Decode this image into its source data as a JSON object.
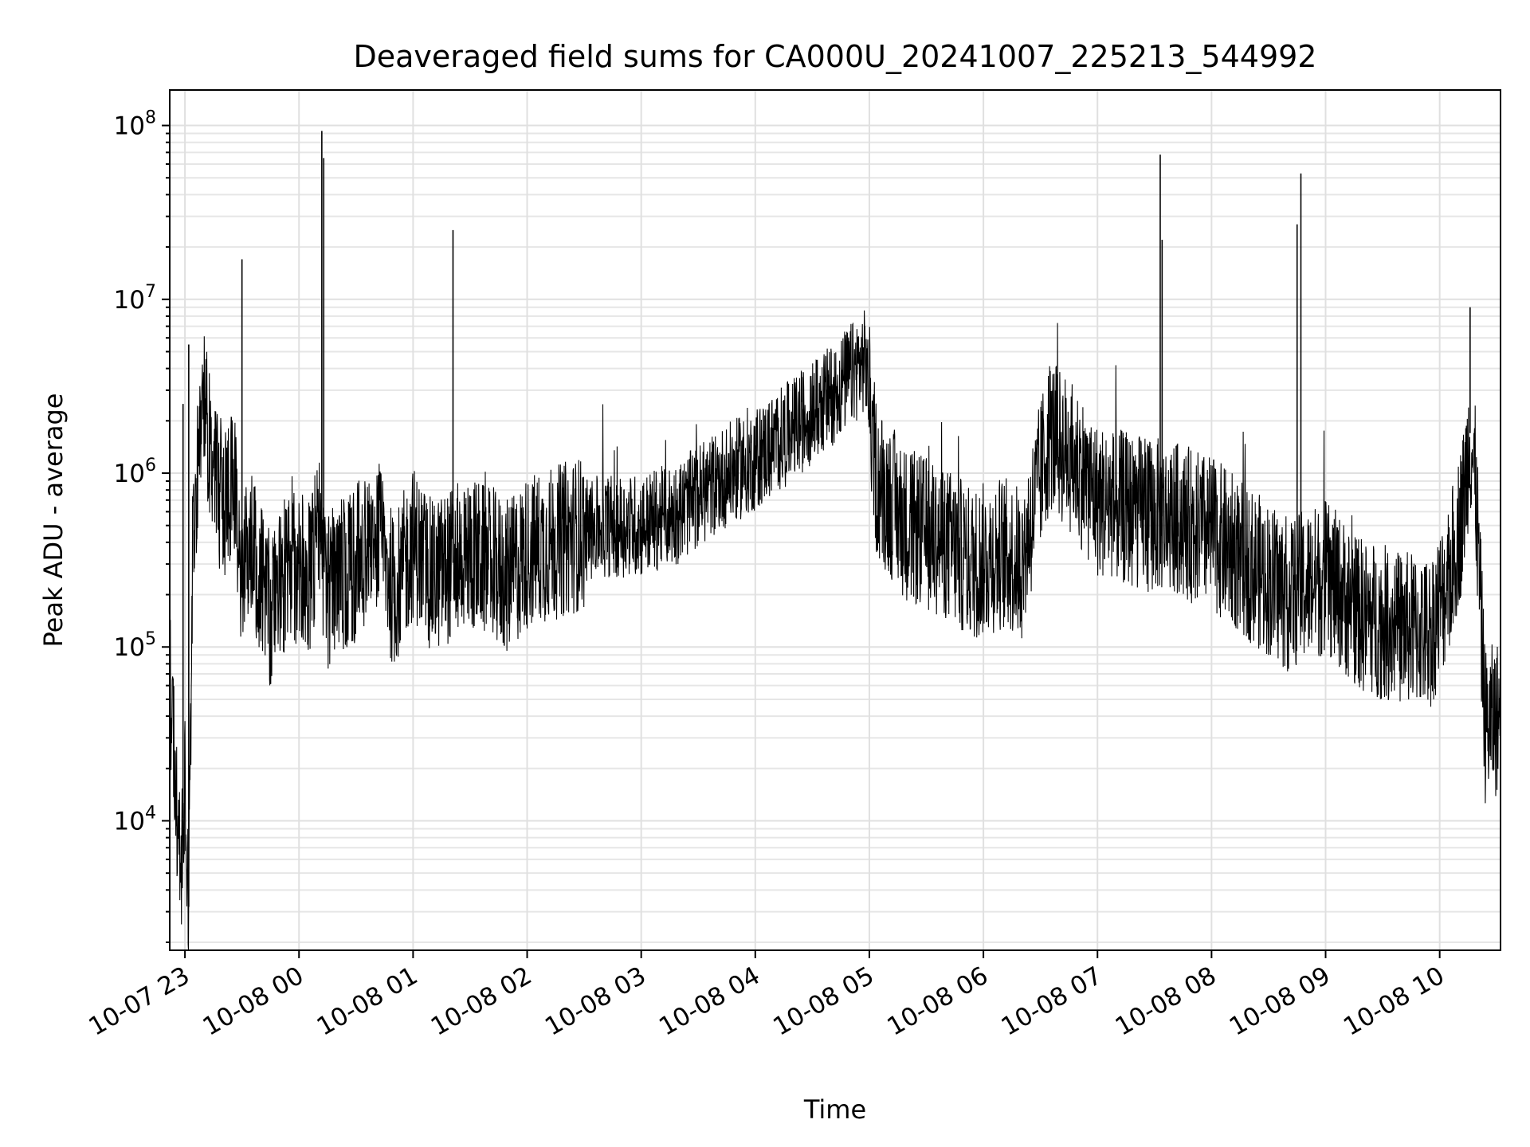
{
  "chart_data": {
    "type": "line",
    "title": "Deaveraged field sums for CA000U_20241007_225213_544992",
    "xlabel": "Time",
    "ylabel": "Peak ADU - average",
    "x_scale": "time",
    "y_scale": "log",
    "xlim": [
      "2024-10-07 22:52",
      "2024-10-08 10:32"
    ],
    "ylim": [
      1800,
      160000000
    ],
    "grid": true,
    "legend": "none",
    "line_color": "#000000",
    "x_ticks": [
      "10-07 23",
      "10-08 00",
      "10-08 01",
      "10-08 02",
      "10-08 03",
      "10-08 04",
      "10-08 05",
      "10-08 06",
      "10-08 07",
      "10-08 08",
      "10-08 09",
      "10-08 10"
    ],
    "y_ticks": [
      {
        "value": 10000,
        "base": "10",
        "exp": "4"
      },
      {
        "value": 100000,
        "base": "10",
        "exp": "5"
      },
      {
        "value": 1000000,
        "base": "10",
        "exp": "6"
      },
      {
        "value": 10000000,
        "base": "10",
        "exp": "7"
      },
      {
        "value": 100000000,
        "base": "10",
        "exp": "8"
      }
    ],
    "series": [
      {
        "x": [
          "2024-10-07 22:52",
          "2024-10-07 22:54",
          "2024-10-07 22:56",
          "2024-10-07 22:58",
          "2024-10-07 23:00",
          "2024-10-07 23:02",
          "2024-10-07 23:04",
          "2024-10-07 23:06",
          "2024-10-07 23:10",
          "2024-10-07 23:14",
          "2024-10-07 23:18",
          "2024-10-07 23:22",
          "2024-10-07 23:26",
          "2024-10-07 23:30",
          "2024-10-07 23:34",
          "2024-10-07 23:38",
          "2024-10-07 23:42",
          "2024-10-07 23:46",
          "2024-10-07 23:52",
          "2024-10-08 00:00",
          "2024-10-08 00:06",
          "2024-10-08 00:11",
          "2024-10-08 00:14",
          "2024-10-08 00:20",
          "2024-10-08 00:30",
          "2024-10-08 00:40",
          "2024-10-08 00:50",
          "2024-10-08 01:00",
          "2024-10-08 01:10",
          "2024-10-08 01:20",
          "2024-10-08 01:30",
          "2024-10-08 01:40",
          "2024-10-08 01:50",
          "2024-10-08 02:00",
          "2024-10-08 02:20",
          "2024-10-08 02:40",
          "2024-10-08 03:00",
          "2024-10-08 03:20",
          "2024-10-08 03:40",
          "2024-10-08 04:00",
          "2024-10-08 04:20",
          "2024-10-08 04:40",
          "2024-10-08 04:58",
          "2024-10-08 05:04",
          "2024-10-08 05:20",
          "2024-10-08 05:40",
          "2024-10-08 05:54",
          "2024-10-08 06:10",
          "2024-10-08 06:20",
          "2024-10-08 06:35",
          "2024-10-08 06:50",
          "2024-10-08 07:00",
          "2024-10-08 07:20",
          "2024-10-08 07:40",
          "2024-10-08 08:00",
          "2024-10-08 08:20",
          "2024-10-08 08:40",
          "2024-10-08 09:00",
          "2024-10-08 09:20",
          "2024-10-08 09:40",
          "2024-10-08 09:55",
          "2024-10-08 10:05",
          "2024-10-08 10:12",
          "2024-10-08 10:16",
          "2024-10-08 10:19",
          "2024-10-08 10:24",
          "2024-10-08 10:32"
        ],
        "y": [
          60000,
          35000,
          12000,
          6000,
          18000,
          3200,
          350000,
          900000,
          2500000,
          1200000,
          800000,
          600000,
          900000,
          250000,
          400000,
          300000,
          200000,
          150000,
          250000,
          300000,
          250000,
          600000,
          200000,
          250000,
          300000,
          500000,
          200000,
          400000,
          250000,
          300000,
          350000,
          300000,
          250000,
          350000,
          420000,
          500000,
          500000,
          600000,
          900000,
          1200000,
          1800000,
          2800000,
          4500000,
          900000,
          500000,
          400000,
          300000,
          350000,
          300000,
          1700000,
          1100000,
          700000,
          600000,
          550000,
          450000,
          300000,
          200000,
          250000,
          150000,
          130000,
          120000,
          250000,
          600000,
          1700000,
          800000,
          35000,
          40000
        ]
      }
    ],
    "spikes": [
      {
        "x": "2024-10-07 22:59",
        "y": 2500000
      },
      {
        "x": "2024-10-07 23:02",
        "y": 5500000
      },
      {
        "x": "2024-10-07 23:30",
        "y": 17000000
      },
      {
        "x": "2024-10-08 00:12",
        "y": 93000000
      },
      {
        "x": "2024-10-08 00:13",
        "y": 65000000
      },
      {
        "x": "2024-10-08 01:21",
        "y": 25000000
      },
      {
        "x": "2024-10-08 07:33",
        "y": 68000000
      },
      {
        "x": "2024-10-08 07:34",
        "y": 22000000
      },
      {
        "x": "2024-10-08 08:45",
        "y": 27000000
      },
      {
        "x": "2024-10-08 08:47",
        "y": 53000000
      },
      {
        "x": "2024-10-08 10:16",
        "y": 9000000
      }
    ]
  }
}
